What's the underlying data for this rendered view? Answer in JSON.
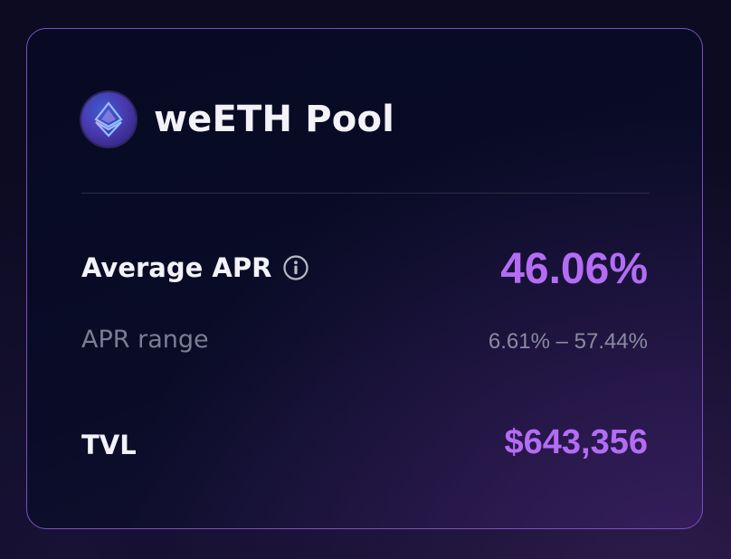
{
  "pool": {
    "title": "weETH Pool",
    "logo_icon": "weeth-logo-icon"
  },
  "stats": {
    "average_apr_label": "Average APR",
    "average_apr_value": "46.06%",
    "info_icon": "info-icon",
    "apr_range_label": "APR range",
    "apr_range_value": "6.61% – 57.44%",
    "tvl_label": "TVL",
    "tvl_value": "$643,356"
  },
  "colors": {
    "accent": "#b46cf5",
    "border": "#7b4fc4",
    "text": "#f3f2f8",
    "muted": "#7c7d93"
  }
}
